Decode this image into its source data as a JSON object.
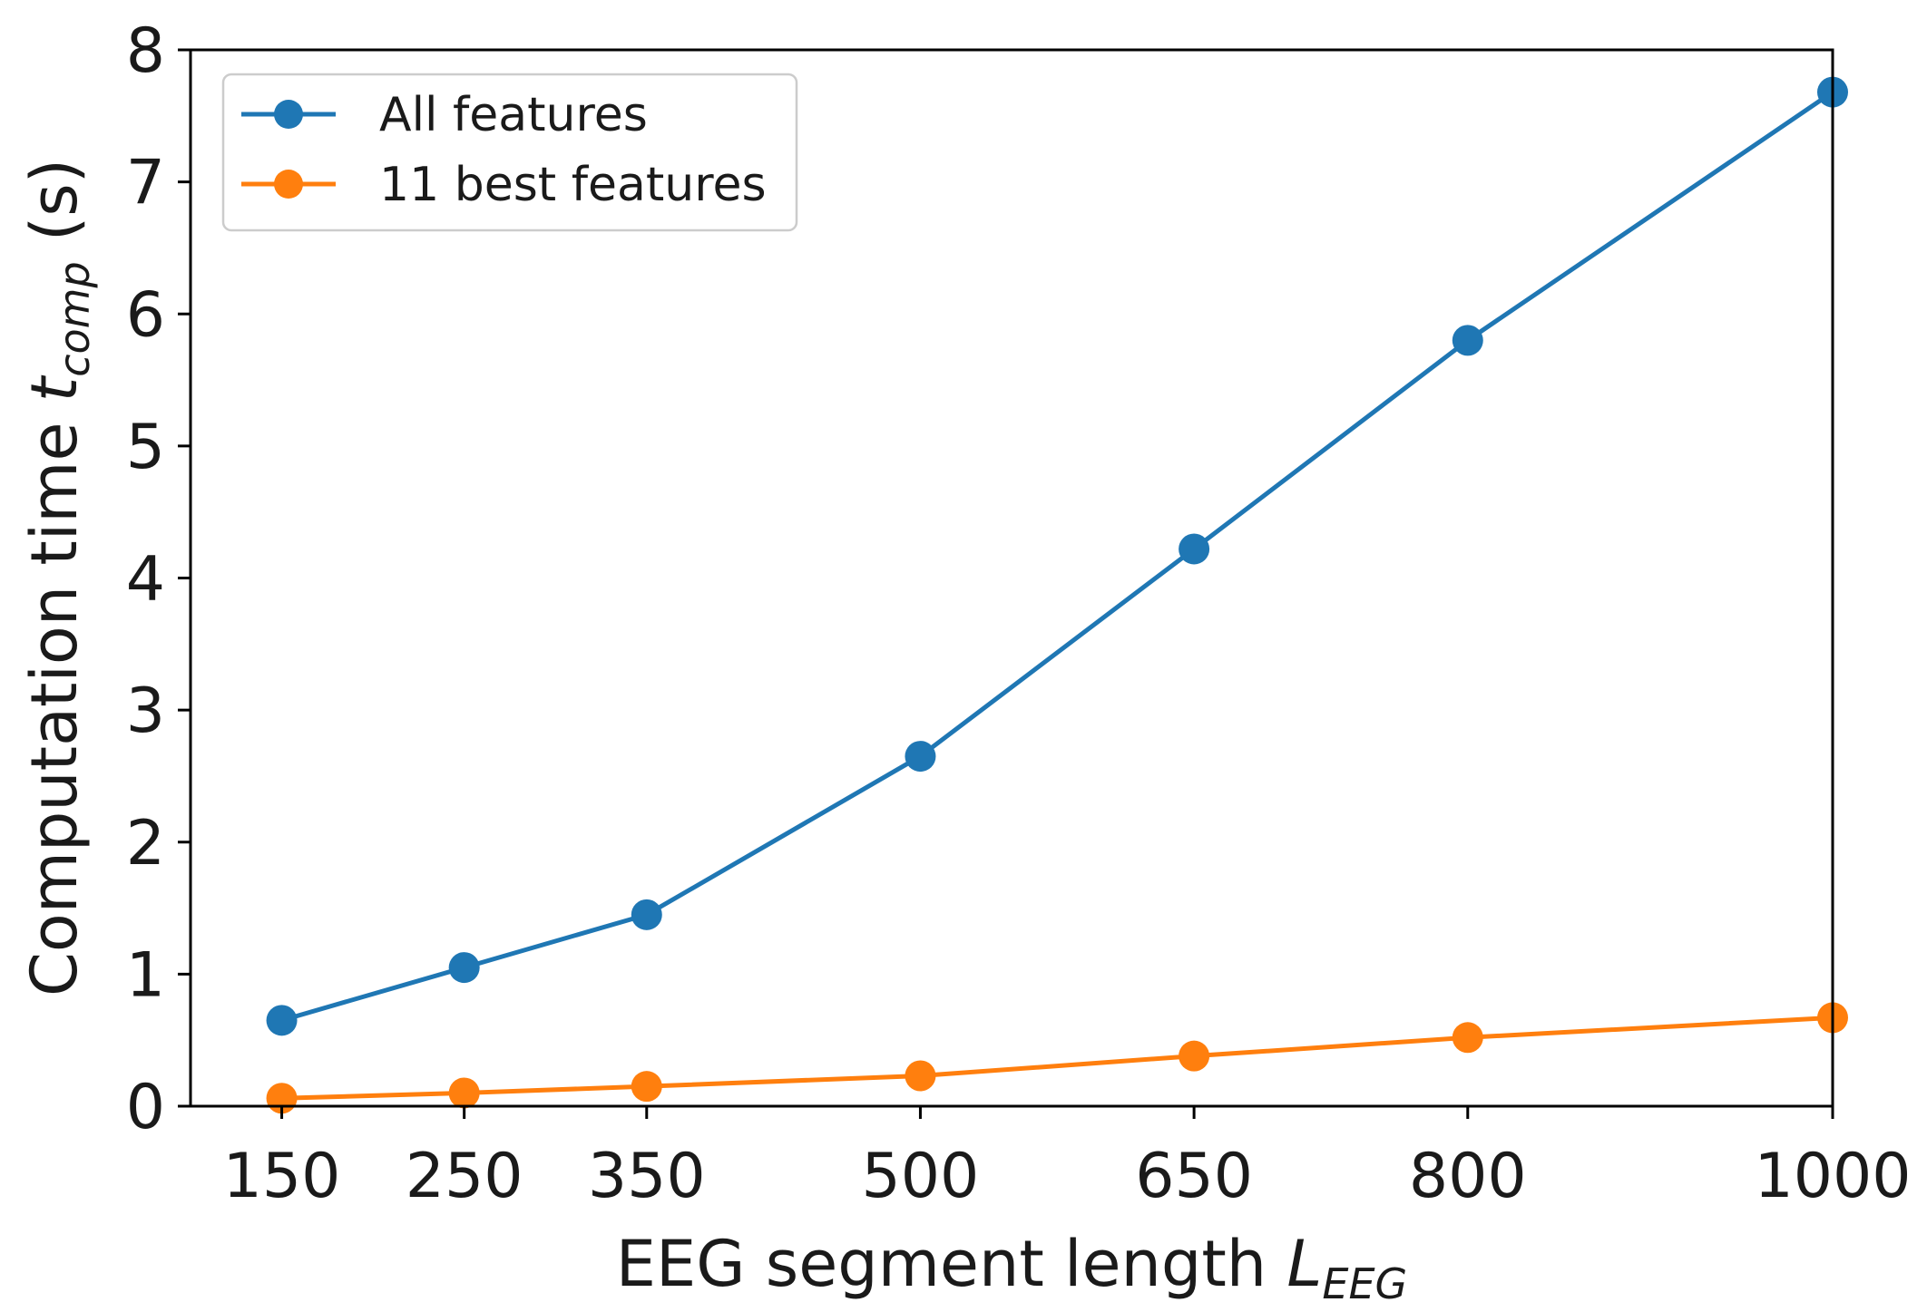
{
  "chart_data": {
    "type": "line",
    "x": [
      150,
      250,
      350,
      500,
      650,
      800,
      1000
    ],
    "x_tick_labels": [
      "150",
      "250",
      "350",
      "500",
      "650",
      "800",
      "1000"
    ],
    "y_ticks": [
      0,
      1,
      2,
      3,
      4,
      5,
      6,
      7,
      8
    ],
    "xlim": [
      100,
      1000
    ],
    "ylim": [
      0,
      8
    ],
    "xlabel": {
      "text": "EEG segment length ",
      "var": "L",
      "sub": "EEG"
    },
    "ylabel": {
      "text": "Computation time ",
      "var": "t",
      "sub": "comp",
      "suffix": " (s)"
    },
    "grid": false,
    "legend_position": "top-left",
    "series": [
      {
        "name": "All features",
        "color": "#1f77b4",
        "values": [
          0.65,
          1.05,
          1.45,
          2.65,
          4.22,
          5.8,
          7.68
        ]
      },
      {
        "name": "11 best features",
        "color": "#ff7f0e",
        "values": [
          0.06,
          0.1,
          0.15,
          0.23,
          0.38,
          0.52,
          0.67
        ]
      }
    ]
  }
}
